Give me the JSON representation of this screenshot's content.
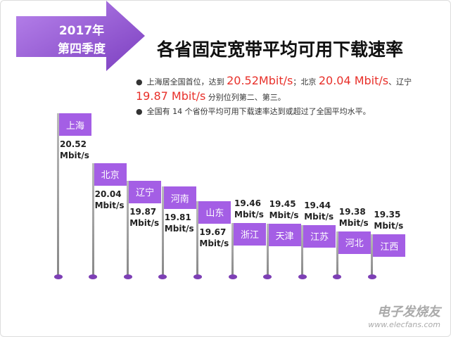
{
  "chart_data": {
    "type": "bar",
    "badge": [
      "2017年",
      "第四季度"
    ],
    "title": "各省固定宽带平均可用下载速率",
    "notes": [
      [
        {
          "text": "上海居全国首位，达到 "
        },
        {
          "text": "20.52Mbit/s",
          "highlight": true
        },
        {
          "text": "；北京 "
        },
        {
          "text": "20.04 Mbit/s",
          "highlight": true
        },
        {
          "text": "、辽宁 "
        },
        {
          "text": "19.87 Mbit/s",
          "highlight": true
        },
        {
          "text": " 分别位列第二、第三。"
        }
      ],
      [
        {
          "text": "全国有 14 个省份平均可用下载速率达到或超过了全国平均水平。"
        }
      ]
    ],
    "categories": [
      "上海",
      "北京",
      "辽宁",
      "河南",
      "山东",
      "浙江",
      "天津",
      "江苏",
      "河北",
      "江西"
    ],
    "values": [
      20.52,
      20.04,
      19.87,
      19.81,
      19.67,
      19.46,
      19.45,
      19.44,
      19.38,
      19.35
    ],
    "value_labels": [
      "20.52 Mbit/s",
      "20.04 Mbit/s",
      "19.87 Mbit/s",
      "19.81 Mbit/s",
      "19.67 Mbit/s",
      "19.46 Mbit/s",
      "19.45 Mbit/s",
      "19.44 Mbit/s",
      "19.38 Mbit/s",
      "19.35 Mbit/s"
    ],
    "color": "#a45ee5",
    "highlight_color": "#e8302a"
  },
  "watermark": {
    "name": "电子发烧友",
    "url": "www.elecfans.com"
  }
}
